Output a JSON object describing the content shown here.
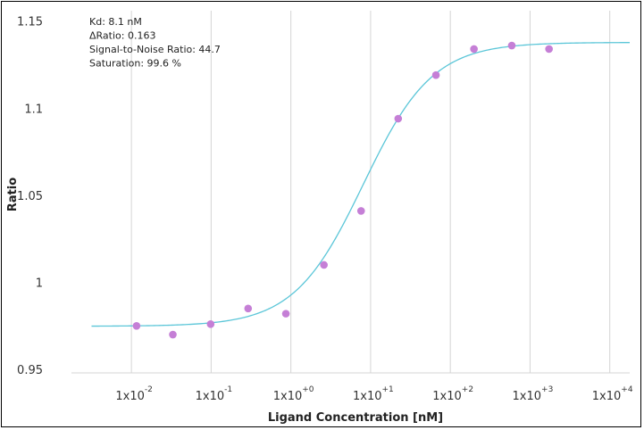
{
  "chart_data": {
    "type": "scatter",
    "xlabel": "Ligand Concentration [nM]",
    "ylabel": "Ratio",
    "x_scale": "log",
    "xlim": [
      0.00177,
      17783
    ],
    "ylim": [
      0.948,
      1.156
    ],
    "grid": {
      "x": true,
      "y": false
    },
    "x_ticks": [
      {
        "value": 0.01,
        "base": "1x10",
        "exp": "-2"
      },
      {
        "value": 0.1,
        "base": "1x10",
        "exp": "-1"
      },
      {
        "value": 1,
        "base": "1x10",
        "exp": "+0"
      },
      {
        "value": 10,
        "base": "1x10",
        "exp": "+1"
      },
      {
        "value": 100,
        "base": "1x10",
        "exp": "+2"
      },
      {
        "value": 1000,
        "base": "1x10",
        "exp": "+3"
      },
      {
        "value": 10000,
        "base": "1x10",
        "exp": "+4"
      }
    ],
    "y_ticks": [
      {
        "value": 0.95,
        "label": "0.95"
      },
      {
        "value": 1.0,
        "label": "1"
      },
      {
        "value": 1.05,
        "label": "1.05"
      },
      {
        "value": 1.1,
        "label": "1.1"
      },
      {
        "value": 1.15,
        "label": "1.15"
      }
    ],
    "points": {
      "color": "#c57fd6",
      "x": [
        0.0116,
        0.0331,
        0.0986,
        0.291,
        0.866,
        2.6,
        7.6,
        22.2,
        66.0,
        198.0,
        590.0,
        1730.0
      ],
      "y": [
        0.975,
        0.97,
        0.976,
        0.985,
        0.982,
        1.01,
        1.041,
        1.094,
        1.119,
        1.134,
        1.136,
        1.134
      ]
    },
    "fit": {
      "color": "#5bc6d8",
      "model": "hill",
      "bottom": 0.9748,
      "top": 1.1378,
      "kd": 8.1,
      "hill": 1.0,
      "x_range": [
        0.00316,
        17783
      ]
    },
    "annotations": [
      "Kd: 8.1 nM",
      "ΔRatio: 0.163",
      "Signal-to-Noise Ratio: 44.7",
      "Saturation: 99.6 %"
    ]
  }
}
